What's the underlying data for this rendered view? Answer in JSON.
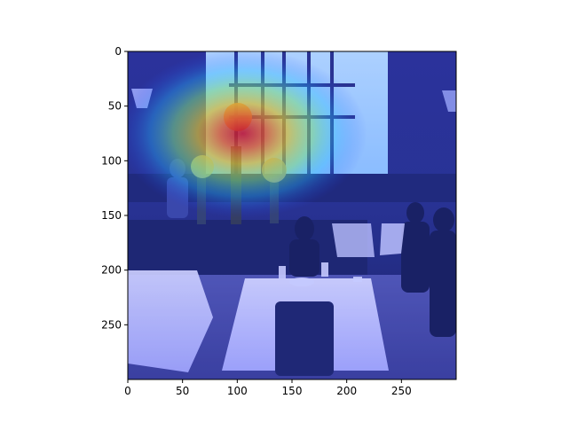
{
  "chart_data": {
    "type": "heatmap",
    "description_free": true,
    "xlim": [
      0,
      300
    ],
    "ylim": [
      300,
      0
    ],
    "x_ticks": [
      {
        "value": 0,
        "label": "0"
      },
      {
        "value": 50,
        "label": "50"
      },
      {
        "value": 100,
        "label": "100"
      },
      {
        "value": 150,
        "label": "150"
      },
      {
        "value": 200,
        "label": "200"
      },
      {
        "value": 250,
        "label": "250"
      }
    ],
    "y_ticks": [
      {
        "value": 0,
        "label": "0"
      },
      {
        "value": 50,
        "label": "50"
      },
      {
        "value": 100,
        "label": "100"
      },
      {
        "value": 150,
        "label": "150"
      },
      {
        "value": 200,
        "label": "200"
      },
      {
        "value": 250,
        "label": "250"
      }
    ],
    "heat_peak": {
      "x": 105,
      "y": 75
    },
    "colormap": "jet",
    "grid": false,
    "colors": {
      "frame": "#000000",
      "heat_hot": "#e01010",
      "heat_warm": "#ffd800",
      "heat_mid": "#30e0ff",
      "heat_cool": "#3050ff"
    }
  }
}
